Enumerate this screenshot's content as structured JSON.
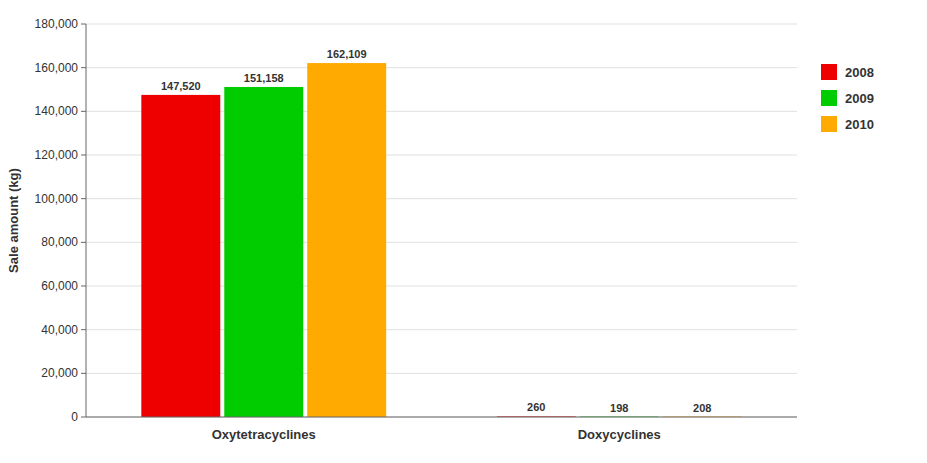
{
  "chart_data": {
    "type": "bar",
    "categories": [
      "Oxytetracyclines",
      "Doxycyclines"
    ],
    "series": [
      {
        "name": "2008",
        "color": "#ee0000",
        "values": [
          147520,
          260
        ],
        "value_labels": [
          "147,520",
          "260"
        ]
      },
      {
        "name": "2009",
        "color": "#00cc00",
        "values": [
          151158,
          198
        ],
        "value_labels": [
          "151,158",
          "198"
        ]
      },
      {
        "name": "2010",
        "color": "#ffaa00",
        "values": [
          162109,
          208
        ],
        "value_labels": [
          "162,109",
          "208"
        ]
      }
    ],
    "y_label": "Sale amount (kg)",
    "ylim": [
      0,
      180000
    ],
    "yticks": [
      0,
      {
        "value": 20000,
        "label": "20,000"
      },
      {
        "value": 40000,
        "label": "40,000"
      },
      {
        "value": 60000,
        "label": "60,000"
      },
      {
        "value": 80000,
        "label": "80,000"
      },
      {
        "value": 100000,
        "label": "100,000"
      },
      {
        "value": 120000,
        "label": "120,000"
      },
      {
        "value": 140000,
        "label": "140,000"
      },
      {
        "value": 160000,
        "label": "160,000"
      },
      {
        "value": 180000,
        "label": "180,000"
      }
    ],
    "grid": true,
    "legend": "right",
    "data_labels": true
  }
}
